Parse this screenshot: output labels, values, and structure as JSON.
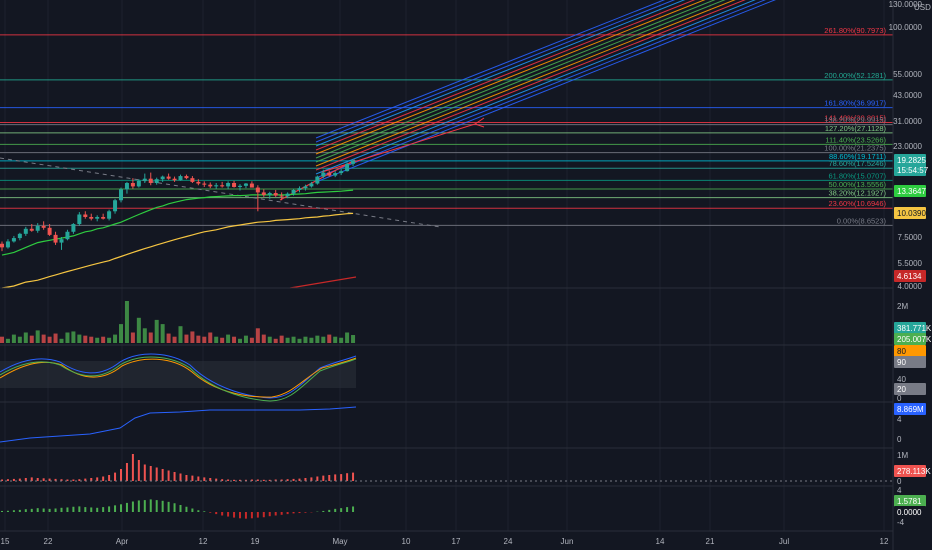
{
  "chart_data": {
    "type": "candlestick",
    "price_axis": {
      "unit": "USD",
      "scale": "log",
      "ticks": [
        "130.0000",
        "100.0000",
        "55.0000",
        "43.0000",
        "31.0000",
        "23.0000",
        "7.5000",
        "5.5000",
        "4.0000"
      ],
      "ylim": [
        4.0,
        130.0
      ],
      "current_price": "19.2825",
      "countdown": "15:54:57",
      "ma_labels": [
        {
          "text": "13.3647",
          "value": 13.3647,
          "color": "#2ecc40"
        },
        {
          "text": "10.0390",
          "value": 10.039,
          "color": "#f5c542"
        },
        {
          "text": "4.6134",
          "value": 4.6134,
          "color": "#c62828"
        }
      ]
    },
    "x_axis": {
      "ticks": [
        "15",
        "22",
        "Apr",
        "12",
        "19",
        "May",
        "10",
        "17",
        "24",
        "Jun",
        "14",
        "21",
        "Jul",
        "12"
      ]
    },
    "fib_levels": [
      {
        "label": "261.80%(90.7973)",
        "value": 90.7973,
        "color": "#f23645"
      },
      {
        "label": "200.00%(52.1281)",
        "value": 52.1281,
        "color": "#22ab94"
      },
      {
        "label": "161.80%(36.9917)",
        "value": 36.9917,
        "color": "#2962ff"
      },
      {
        "label": "141.40%(30.8015)",
        "value": 30.8015,
        "color": "#f23645"
      },
      {
        "label": "138.20%(29.9915)",
        "value": 29.9915,
        "color": "#787b86"
      },
      {
        "label": "127.20%(27.1128)",
        "value": 27.1128,
        "color": "#81c784"
      },
      {
        "label": "111.40%(23.5266)",
        "value": 23.5266,
        "color": "#4caf50"
      },
      {
        "label": "100.00%(21.2375)",
        "value": 21.2375,
        "color": "#787b86"
      },
      {
        "label": "88.60%(19.1711)",
        "value": 19.1711,
        "color": "#00bcd4"
      },
      {
        "label": "78.60%(17.5246)",
        "value": 17.5246,
        "color": "#26a69a"
      },
      {
        "label": "61.80%(15.0707)",
        "value": 15.0707,
        "color": "#089981"
      },
      {
        "label": "50.00%(13.5556)",
        "value": 13.5556,
        "color": "#4caf50"
      },
      {
        "label": "38.20%(12.1927)",
        "value": 12.1927,
        "color": "#81c784"
      },
      {
        "label": "23.60%(10.6946)",
        "value": 10.6946,
        "color": "#f23645"
      },
      {
        "label": "0.00%(8.6523)",
        "value": 8.6523,
        "color": "#787b86"
      }
    ],
    "candles": [
      {
        "o": 6.9,
        "h": 7.1,
        "l": 6.3,
        "c": 6.6
      },
      {
        "o": 6.6,
        "h": 7.3,
        "l": 6.5,
        "c": 7.1
      },
      {
        "o": 7.1,
        "h": 7.6,
        "l": 7.0,
        "c": 7.4
      },
      {
        "o": 7.4,
        "h": 7.9,
        "l": 7.2,
        "c": 7.8
      },
      {
        "o": 7.8,
        "h": 8.5,
        "l": 7.6,
        "c": 8.3
      },
      {
        "o": 8.3,
        "h": 8.8,
        "l": 8.0,
        "c": 8.1
      },
      {
        "o": 8.1,
        "h": 8.9,
        "l": 7.9,
        "c": 8.6
      },
      {
        "o": 8.6,
        "h": 9.1,
        "l": 8.2,
        "c": 8.4
      },
      {
        "o": 8.4,
        "h": 8.8,
        "l": 7.6,
        "c": 7.7
      },
      {
        "o": 7.7,
        "h": 8.0,
        "l": 6.8,
        "c": 7.0
      },
      {
        "o": 7.0,
        "h": 7.5,
        "l": 6.4,
        "c": 7.3
      },
      {
        "o": 7.3,
        "h": 8.2,
        "l": 7.2,
        "c": 8.0
      },
      {
        "o": 8.0,
        "h": 8.9,
        "l": 7.8,
        "c": 8.8
      },
      {
        "o": 8.8,
        "h": 10.2,
        "l": 8.6,
        "c": 9.9
      },
      {
        "o": 9.9,
        "h": 10.3,
        "l": 9.4,
        "c": 9.6
      },
      {
        "o": 9.6,
        "h": 10.0,
        "l": 9.2,
        "c": 9.4
      },
      {
        "o": 9.4,
        "h": 9.8,
        "l": 9.1,
        "c": 9.6
      },
      {
        "o": 9.6,
        "h": 10.0,
        "l": 9.3,
        "c": 9.4
      },
      {
        "o": 9.4,
        "h": 10.5,
        "l": 9.2,
        "c": 10.3
      },
      {
        "o": 10.3,
        "h": 12.0,
        "l": 10.0,
        "c": 11.8
      },
      {
        "o": 11.8,
        "h": 13.8,
        "l": 11.5,
        "c": 13.5
      },
      {
        "o": 13.5,
        "h": 14.8,
        "l": 12.8,
        "c": 14.6
      },
      {
        "o": 14.6,
        "h": 15.5,
        "l": 13.6,
        "c": 14.0
      },
      {
        "o": 14.0,
        "h": 15.3,
        "l": 13.8,
        "c": 15.0
      },
      {
        "o": 15.0,
        "h": 16.4,
        "l": 14.6,
        "c": 15.4
      },
      {
        "o": 15.4,
        "h": 16.6,
        "l": 14.2,
        "c": 14.6
      },
      {
        "o": 14.6,
        "h": 15.6,
        "l": 14.3,
        "c": 15.3
      },
      {
        "o": 15.3,
        "h": 16.0,
        "l": 14.8,
        "c": 15.8
      },
      {
        "o": 15.8,
        "h": 16.4,
        "l": 15.2,
        "c": 15.4
      },
      {
        "o": 15.4,
        "h": 15.8,
        "l": 14.8,
        "c": 15.1
      },
      {
        "o": 15.1,
        "h": 16.2,
        "l": 15.0,
        "c": 15.9
      },
      {
        "o": 15.9,
        "h": 16.2,
        "l": 15.3,
        "c": 15.5
      },
      {
        "o": 15.5,
        "h": 15.9,
        "l": 14.6,
        "c": 14.8
      },
      {
        "o": 14.8,
        "h": 15.3,
        "l": 14.2,
        "c": 14.5
      },
      {
        "o": 14.5,
        "h": 14.9,
        "l": 13.9,
        "c": 14.3
      },
      {
        "o": 14.3,
        "h": 14.7,
        "l": 13.7,
        "c": 14.0
      },
      {
        "o": 14.0,
        "h": 14.6,
        "l": 13.6,
        "c": 14.2
      },
      {
        "o": 14.2,
        "h": 14.8,
        "l": 13.8,
        "c": 14.0
      },
      {
        "o": 14.0,
        "h": 14.9,
        "l": 13.5,
        "c": 14.6
      },
      {
        "o": 14.6,
        "h": 15.0,
        "l": 13.8,
        "c": 13.9
      },
      {
        "o": 13.9,
        "h": 14.4,
        "l": 13.3,
        "c": 14.1
      },
      {
        "o": 14.1,
        "h": 14.6,
        "l": 13.7,
        "c": 14.5
      },
      {
        "o": 14.5,
        "h": 14.9,
        "l": 13.9,
        "c": 13.8
      },
      {
        "o": 13.8,
        "h": 14.2,
        "l": 10.3,
        "c": 13.0
      },
      {
        "o": 13.0,
        "h": 13.5,
        "l": 12.3,
        "c": 12.6
      },
      {
        "o": 12.6,
        "h": 13.1,
        "l": 12.0,
        "c": 12.9
      },
      {
        "o": 12.9,
        "h": 13.4,
        "l": 12.3,
        "c": 12.5
      },
      {
        "o": 12.5,
        "h": 13.0,
        "l": 11.8,
        "c": 12.4
      },
      {
        "o": 12.4,
        "h": 13.0,
        "l": 12.1,
        "c": 12.8
      },
      {
        "o": 12.8,
        "h": 13.6,
        "l": 12.5,
        "c": 13.4
      },
      {
        "o": 13.4,
        "h": 14.0,
        "l": 13.0,
        "c": 13.7
      },
      {
        "o": 13.7,
        "h": 14.3,
        "l": 13.3,
        "c": 14.0
      },
      {
        "o": 14.0,
        "h": 14.8,
        "l": 13.8,
        "c": 14.5
      },
      {
        "o": 14.5,
        "h": 16.0,
        "l": 14.3,
        "c": 15.8
      },
      {
        "o": 15.8,
        "h": 17.2,
        "l": 15.5,
        "c": 16.6
      },
      {
        "o": 16.6,
        "h": 17.0,
        "l": 15.8,
        "c": 16.0
      },
      {
        "o": 16.0,
        "h": 16.9,
        "l": 15.7,
        "c": 16.5
      },
      {
        "o": 16.5,
        "h": 17.4,
        "l": 16.1,
        "c": 16.9
      },
      {
        "o": 16.9,
        "h": 18.8,
        "l": 16.8,
        "c": 18.5
      },
      {
        "o": 18.5,
        "h": 19.5,
        "l": 18.0,
        "c": 19.28
      }
    ],
    "ma_green": [
      6.0,
      6.1,
      6.2,
      6.4,
      6.6,
      6.8,
      7.0,
      7.1,
      7.2,
      7.3,
      7.4,
      7.5,
      7.6,
      7.8,
      8.0,
      8.1,
      8.3,
      8.4,
      8.6,
      8.8,
      9.0,
      9.3,
      9.6,
      9.9,
      10.2,
      10.5,
      10.8,
      11.0,
      11.3,
      11.5,
      11.7,
      11.9,
      12.0,
      12.1,
      12.2,
      12.3,
      12.35,
      12.4,
      12.45,
      12.5,
      12.5,
      12.55,
      12.6,
      12.6,
      12.6,
      12.6,
      12.6,
      12.6,
      12.6,
      12.7,
      12.75,
      12.8,
      12.9,
      13.0,
      13.05,
      13.1,
      13.15,
      13.2,
      13.3,
      13.36
    ],
    "ma_yellow": [
      4.0,
      4.05,
      4.1,
      4.2,
      4.3,
      4.35,
      4.4,
      4.5,
      4.6,
      4.7,
      4.8,
      4.9,
      5.0,
      5.1,
      5.2,
      5.3,
      5.4,
      5.5,
      5.6,
      5.75,
      5.9,
      6.05,
      6.2,
      6.35,
      6.5,
      6.65,
      6.8,
      6.95,
      7.1,
      7.25,
      7.4,
      7.55,
      7.7,
      7.85,
      8.0,
      8.1,
      8.2,
      8.35,
      8.5,
      8.6,
      8.7,
      8.8,
      8.9,
      9.0,
      9.05,
      9.1,
      9.2,
      9.25,
      9.3,
      9.35,
      9.4,
      9.5,
      9.55,
      9.6,
      9.7,
      9.75,
      9.85,
      9.92,
      10.0,
      10.04
    ],
    "panels": {
      "volume": {
        "ticks": [
          "2M"
        ],
        "labels": [
          "381.771K",
          "205.007K"
        ]
      },
      "stoch": {
        "ticks": [
          "40",
          "0"
        ],
        "labels": [
          "80",
          "90",
          "20"
        ]
      },
      "obv": {
        "ticks": [
          "4",
          "0"
        ],
        "labels": [
          "8.869M"
        ]
      },
      "hist1": {
        "ticks": [
          "1M",
          "0"
        ],
        "labels": [
          "278.113K"
        ]
      },
      "hist2": {
        "ticks": [
          "4",
          "-4"
        ],
        "labels": [
          "1.5781",
          "0.0000"
        ]
      }
    },
    "volume": [
      0.3,
      0.2,
      0.4,
      0.3,
      0.5,
      0.35,
      0.6,
      0.4,
      0.3,
      0.45,
      0.2,
      0.5,
      0.55,
      0.4,
      0.35,
      0.3,
      0.25,
      0.3,
      0.25,
      0.4,
      0.9,
      2.0,
      0.5,
      1.2,
      0.7,
      0.5,
      1.1,
      0.9,
      0.45,
      0.3,
      0.8,
      0.4,
      0.55,
      0.35,
      0.3,
      0.5,
      0.3,
      0.25,
      0.4,
      0.3,
      0.2,
      0.35,
      0.25,
      0.7,
      0.4,
      0.3,
      0.2,
      0.35,
      0.25,
      0.3,
      0.2,
      0.3,
      0.25,
      0.35,
      0.3,
      0.4,
      0.3,
      0.25,
      0.5,
      0.38
    ],
    "hist1": [
      0.05,
      0.06,
      0.07,
      0.08,
      0.1,
      0.12,
      0.1,
      0.09,
      0.08,
      0.07,
      0.06,
      0.05,
      0.05,
      0.06,
      0.08,
      0.1,
      0.12,
      0.15,
      0.2,
      0.28,
      0.4,
      0.6,
      0.9,
      0.7,
      0.55,
      0.5,
      0.45,
      0.4,
      0.35,
      0.3,
      0.25,
      0.2,
      0.18,
      0.15,
      0.12,
      0.1,
      0.08,
      0.06,
      0.05,
      0.04,
      0.04,
      0.04,
      0.05,
      0.05,
      0.04,
      0.04,
      0.05,
      0.05,
      0.06,
      0.07,
      0.08,
      0.1,
      0.12,
      0.15,
      0.18,
      0.2,
      0.22,
      0.23,
      0.26,
      0.28
    ],
    "hist2": [
      0.3,
      0.35,
      0.5,
      0.6,
      0.8,
      0.9,
      1.1,
      1.0,
      0.9,
      1.0,
      1.2,
      1.3,
      1.5,
      1.6,
      1.4,
      1.3,
      1.2,
      1.4,
      1.6,
      1.9,
      2.2,
      2.6,
      3.0,
      3.3,
      3.4,
      3.6,
      3.4,
      3.2,
      2.9,
      2.5,
      2.0,
      1.5,
      1.0,
      0.5,
      0.2,
      -0.2,
      -0.6,
      -1.0,
      -1.3,
      -1.6,
      -1.8,
      -1.9,
      -1.8,
      -1.6,
      -1.5,
      -1.2,
      -1.0,
      -0.8,
      -0.6,
      -0.4,
      -0.3,
      -0.2,
      -0.1,
      0.1,
      0.3,
      0.6,
      0.9,
      1.1,
      1.4,
      1.58
    ]
  }
}
